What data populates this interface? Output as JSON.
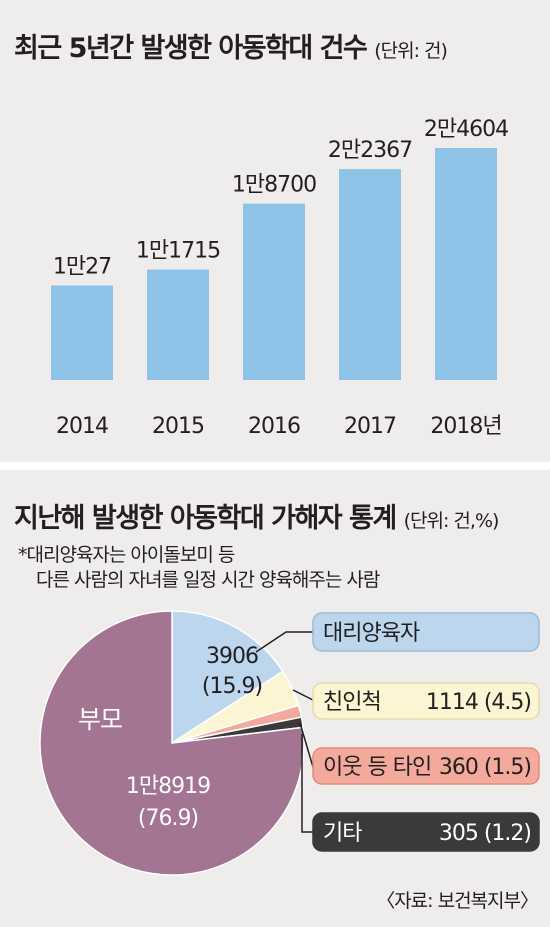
{
  "top": {
    "title": "최근 5년간 발생한 아동학대 건수",
    "unit": "(단위: 건)"
  },
  "bottom": {
    "title": "지난해 발생한 아동학대 가해자 통계",
    "unit": "(단위: 건,%)",
    "note_line1": "*대리양육자는 아이돌보미 등",
    "note_line2": "다른 사람의 자녀를 일정 시간 양육해주는 사람"
  },
  "source": "〈자료: 보건복지부〉",
  "colors": {
    "background": "#eeedeb",
    "bar": "#8dc3e6",
    "parent": "#a47493",
    "guardian": "#bcd6ee",
    "relative": "#fbf5d4",
    "neighbor": "#f3a99c",
    "other": "#3a3a3a"
  },
  "chart_data": [
    {
      "type": "bar",
      "title": "최근 5년간 발생한 아동학대 건수",
      "categories": [
        "2014",
        "2015",
        "2016",
        "2017",
        "2018"
      ],
      "category_labels": [
        "2014",
        "2015",
        "2016",
        "2017",
        "2018년"
      ],
      "values": [
        10027,
        11715,
        18700,
        22367,
        24604
      ],
      "value_labels": [
        "1만27",
        "1만1715",
        "1만8700",
        "2만2367",
        "2만4604"
      ],
      "ylim": [
        0,
        24604
      ],
      "grid": false
    },
    {
      "type": "pie",
      "title": "지난해 발생한 아동학대 가해자 통계",
      "slices": [
        {
          "name": "대리양육자",
          "value": 3906,
          "percent": 15.9,
          "color": "#bcd6ee",
          "label": "3906",
          "pct_label": "(15.9)"
        },
        {
          "name": "친인척",
          "value": 1114,
          "percent": 4.5,
          "color": "#fbf5d4",
          "label": "1114 (4.5)"
        },
        {
          "name": "이웃 등 타인",
          "value": 360,
          "percent": 1.5,
          "color": "#f3a99c",
          "label": "360 (1.5)"
        },
        {
          "name": "기타",
          "value": 305,
          "percent": 1.2,
          "color": "#3a3a3a",
          "label": "305 (1.2)"
        },
        {
          "name": "부모",
          "value": 18919,
          "percent": 76.9,
          "color": "#a47493",
          "label": "1만8919",
          "pct_label": "(76.9)"
        }
      ]
    }
  ]
}
